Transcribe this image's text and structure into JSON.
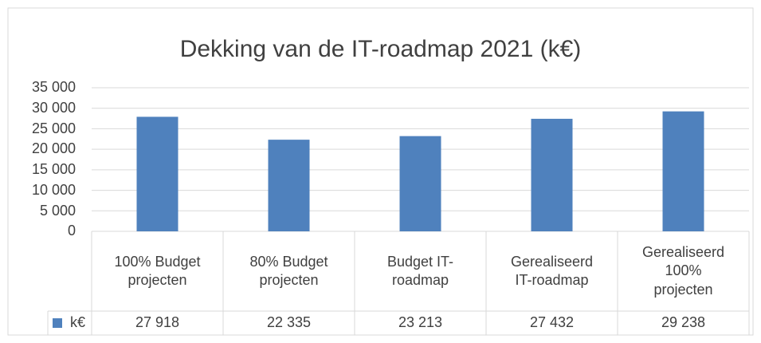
{
  "chart_data": {
    "type": "bar",
    "title": "Dekking van de IT-roadmap 2021 (k€)",
    "categories": [
      "100% Budget projecten",
      "80% Budget projecten",
      "Budget IT-roadmap",
      "Gerealiseerd IT-roadmap",
      "Gerealiseerd 100% projecten"
    ],
    "series": [
      {
        "name": "k€",
        "color": "#4f81bd",
        "values": [
          27918,
          22335,
          23213,
          27432,
          29238
        ],
        "value_labels": [
          "27 918",
          "22 335",
          "23 213",
          "27 432",
          "29 238"
        ]
      }
    ],
    "ylim": [
      0,
      35000
    ],
    "yticks": [
      0,
      {
        "value": 5000,
        "label": "5 000"
      },
      {
        "value": 10000,
        "label": "10 000"
      },
      {
        "value": 15000,
        "label": "15 000"
      },
      {
        "value": 20000,
        "label": "20 000"
      },
      {
        "value": 25000,
        "label": "25 000"
      },
      {
        "value": 30000,
        "label": "30 000"
      },
      {
        "value": 35000,
        "label": "35 000"
      }
    ],
    "grid": true,
    "data_table": true
  }
}
